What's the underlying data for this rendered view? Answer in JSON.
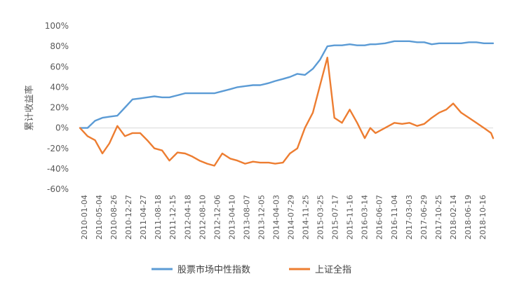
{
  "chart_data": {
    "type": "line",
    "ylabel": "累计收益率",
    "ylim": [
      -0.6,
      1.0
    ],
    "yticks": [
      {
        "value": 1.0,
        "label": "100%"
      },
      {
        "value": 0.8,
        "label": "80%"
      },
      {
        "value": 0.6,
        "label": "60%"
      },
      {
        "value": 0.4,
        "label": "40%"
      },
      {
        "value": 0.2,
        "label": "20%"
      },
      {
        "value": 0.0,
        "label": "0%"
      },
      {
        "value": -0.2,
        "label": "-20%"
      },
      {
        "value": -0.4,
        "label": "-40%"
      },
      {
        "value": -0.6,
        "label": "-60%"
      }
    ],
    "x_tick_labels": [
      "2010-01-04",
      "2010-05-04",
      "2010-08-26",
      "2010-12-27",
      "2011-04-27",
      "2011-08-18",
      "2011-12-15",
      "2012-04-18",
      "2012-08-10",
      "2012-12-06",
      "2013-04-10",
      "2013-08-07",
      "2013-12-05",
      "2014-04-03",
      "2014-07-29",
      "2014-11-25",
      "2015-03-25",
      "2015-07-17",
      "2015-11-16",
      "2016-03-14",
      "2016-06-07",
      "2016-11-04",
      "2017-03-03",
      "2017-06-29",
      "2017-10-25",
      "2018-02-14",
      "2018-06-19",
      "2018-10-16"
    ],
    "grid": false,
    "legend_position": "bottom",
    "x": [
      "2010-01-04",
      "2010-03-05",
      "2010-05-04",
      "2010-07-01",
      "2010-08-26",
      "2010-10-28",
      "2010-12-27",
      "2011-02-25",
      "2011-04-27",
      "2011-06-22",
      "2011-08-18",
      "2011-10-18",
      "2011-12-15",
      "2012-02-17",
      "2012-04-18",
      "2012-06-14",
      "2012-08-10",
      "2012-10-10",
      "2012-12-06",
      "2013-02-07",
      "2013-04-10",
      "2013-06-07",
      "2013-08-07",
      "2013-10-09",
      "2013-12-05",
      "2014-02-10",
      "2014-04-03",
      "2014-06-03",
      "2014-07-29",
      "2014-09-26",
      "2014-11-25",
      "2015-01-27",
      "2015-03-25",
      "2015-05-22",
      "2015-07-17",
      "2015-09-15",
      "2015-11-16",
      "2016-01-14",
      "2016-03-14",
      "2016-04-27",
      "2016-06-07",
      "2016-08-22",
      "2016-11-04",
      "2017-01-05",
      "2017-03-03",
      "2017-05-04",
      "2017-06-29",
      "2017-08-28",
      "2017-10-25",
      "2017-12-21",
      "2018-02-14",
      "2018-04-18",
      "2018-06-19",
      "2018-08-17",
      "2018-10-16",
      "2018-12-12",
      "2018-12-28"
    ],
    "series": [
      {
        "name": "股票市场中性指数",
        "color": "#5b9bd5",
        "values": [
          0.0,
          0.0,
          0.07,
          0.1,
          0.11,
          0.12,
          0.2,
          0.28,
          0.29,
          0.3,
          0.31,
          0.3,
          0.3,
          0.32,
          0.34,
          0.34,
          0.34,
          0.34,
          0.34,
          0.36,
          0.38,
          0.4,
          0.41,
          0.42,
          0.42,
          0.44,
          0.46,
          0.48,
          0.5,
          0.53,
          0.52,
          0.58,
          0.67,
          0.8,
          0.81,
          0.81,
          0.82,
          0.81,
          0.81,
          0.82,
          0.82,
          0.83,
          0.85,
          0.85,
          0.85,
          0.84,
          0.84,
          0.82,
          0.83,
          0.83,
          0.83,
          0.83,
          0.84,
          0.84,
          0.83,
          0.83,
          0.83
        ]
      },
      {
        "name": "上证全指",
        "color": "#ed7d31",
        "values": [
          0.0,
          -0.08,
          -0.12,
          -0.25,
          -0.15,
          0.02,
          -0.08,
          -0.05,
          -0.05,
          -0.12,
          -0.2,
          -0.22,
          -0.32,
          -0.24,
          -0.25,
          -0.28,
          -0.32,
          -0.35,
          -0.37,
          -0.25,
          -0.3,
          -0.32,
          -0.35,
          -0.33,
          -0.34,
          -0.34,
          -0.35,
          -0.34,
          -0.25,
          -0.2,
          0.0,
          0.15,
          0.42,
          0.69,
          0.1,
          0.05,
          0.18,
          0.05,
          -0.1,
          0.0,
          -0.05,
          0.0,
          0.05,
          0.04,
          0.05,
          0.02,
          0.04,
          0.1,
          0.15,
          0.18,
          0.24,
          0.15,
          0.1,
          0.05,
          0.0,
          -0.05,
          -0.1
        ]
      }
    ]
  }
}
